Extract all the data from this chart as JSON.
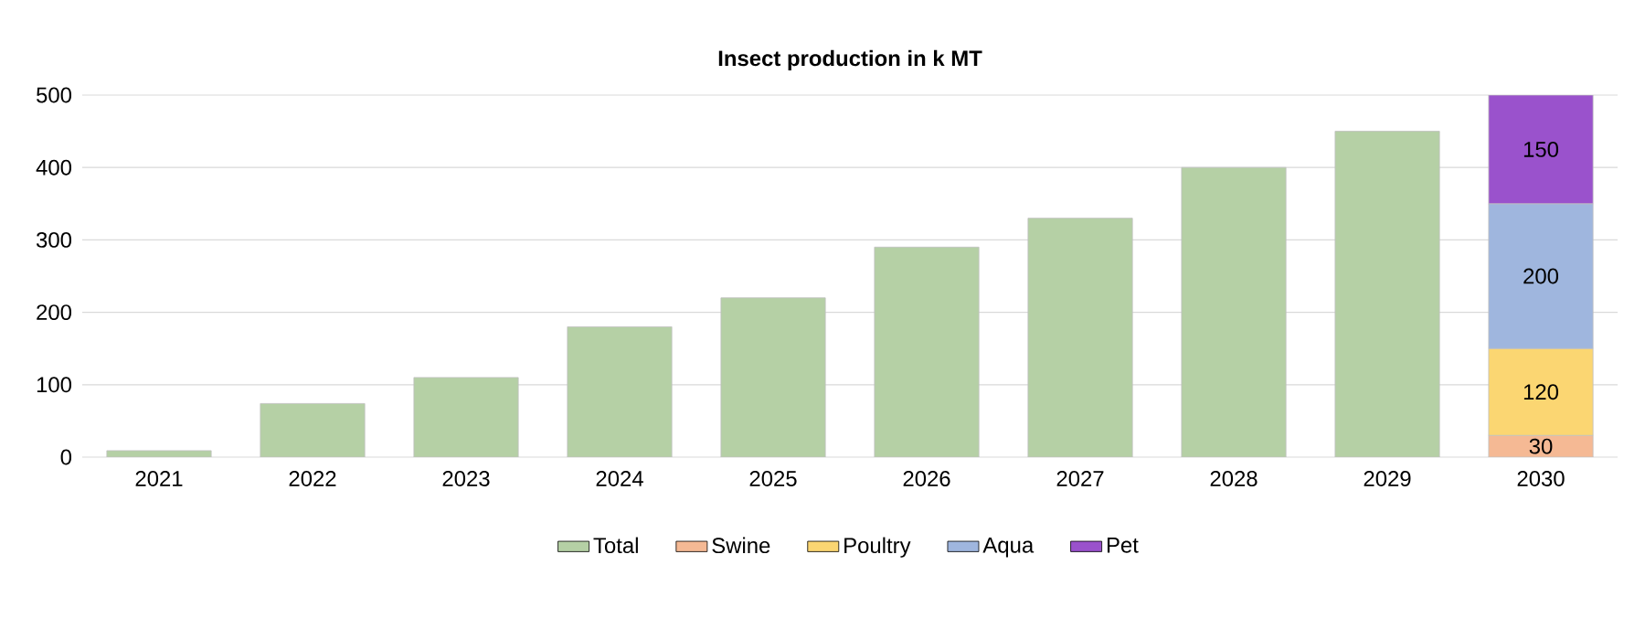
{
  "chart_data": {
    "type": "bar",
    "title": "Insect production in k MT",
    "categories": [
      "2021",
      "2022",
      "2023",
      "2024",
      "2025",
      "2026",
      "2027",
      "2028",
      "2029",
      "2030"
    ],
    "series": [
      {
        "name": "Total",
        "color": "#b5d0a5",
        "values": [
          9,
          74,
          110,
          180,
          220,
          290,
          330,
          400,
          450,
          null
        ]
      },
      {
        "name": "Swine",
        "color": "#f5b994",
        "values": [
          null,
          null,
          null,
          null,
          null,
          null,
          null,
          null,
          null,
          30
        ],
        "value_labels": [
          null,
          null,
          null,
          null,
          null,
          null,
          null,
          null,
          null,
          "30"
        ]
      },
      {
        "name": "Poultry",
        "color": "#fbd672",
        "values": [
          null,
          null,
          null,
          null,
          null,
          null,
          null,
          null,
          null,
          120
        ],
        "value_labels": [
          null,
          null,
          null,
          null,
          null,
          null,
          null,
          null,
          null,
          "120"
        ]
      },
      {
        "name": "Aqua",
        "color": "#9fb6de",
        "values": [
          null,
          null,
          null,
          null,
          null,
          null,
          null,
          null,
          null,
          200
        ],
        "value_labels": [
          null,
          null,
          null,
          null,
          null,
          null,
          null,
          null,
          null,
          "200"
        ]
      },
      {
        "name": "Pet",
        "color": "#9a52cc",
        "values": [
          null,
          null,
          null,
          null,
          null,
          null,
          null,
          null,
          null,
          150
        ],
        "value_labels": [
          null,
          null,
          null,
          null,
          null,
          null,
          null,
          null,
          null,
          "150"
        ]
      }
    ],
    "stacked": true,
    "ylim": [
      0,
      500
    ],
    "yticks": [
      0,
      100,
      200,
      300,
      400,
      500
    ],
    "grid": "y",
    "legend": "bottom"
  }
}
